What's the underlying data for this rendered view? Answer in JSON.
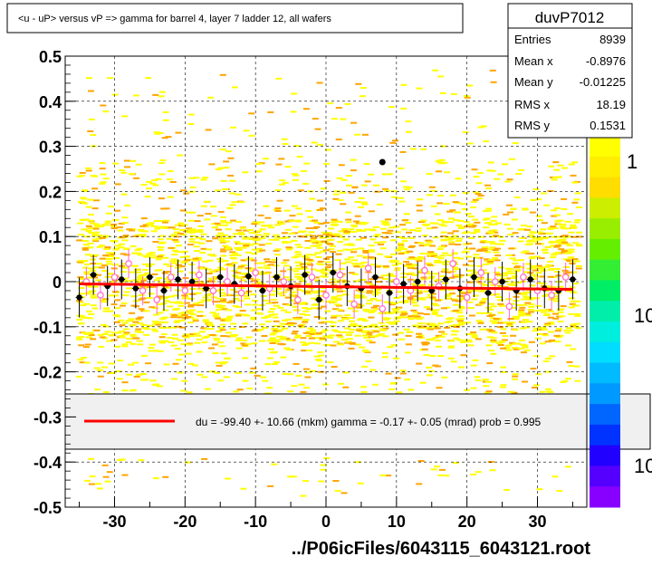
{
  "chart_data": {
    "type": "scatter",
    "title": "<u - uP>       versus   vP =>  gamma for barrel 4, layer 7 ladder 12, all wafers",
    "footer": "../P06icFiles/6043115_6043121.root",
    "xlim": [
      -37,
      37
    ],
    "ylim": [
      -0.5,
      0.5
    ],
    "xticks": [
      -30,
      -20,
      -10,
      0,
      10,
      20,
      30
    ],
    "xtick_labels": [
      "-30",
      "-20",
      "-10",
      "0",
      "10",
      "20",
      "30"
    ],
    "yticks": [
      -0.5,
      -0.4,
      -0.3,
      -0.2,
      -0.1,
      0,
      0.1,
      0.2,
      0.3,
      0.4,
      0.5
    ],
    "ytick_labels": [
      "-0.5",
      "-0.4",
      "-0.3",
      "-0.2",
      "-0.1",
      "0",
      "0.1",
      "0.2",
      "0.3",
      "0.4",
      "0.5"
    ],
    "grid": true,
    "stats": {
      "name": "duvP7012",
      "rows": [
        {
          "label": "Entries",
          "value": "8939"
        },
        {
          "label": "Mean x",
          "value": "-0.8976"
        },
        {
          "label": "Mean y",
          "value": "-0.01225"
        },
        {
          "label": "RMS x",
          "value": "18.19"
        },
        {
          "label": "RMS y",
          "value": "0.1531"
        }
      ]
    },
    "palette_labels": [
      "1",
      "10",
      "10"
    ],
    "legend_text": "du =  -99.40 +- 10.66 (mkm) gamma =   -0.17 +-  0.05 (mrad) prob = 0.995",
    "fit_line": {
      "x": [
        -35,
        35
      ],
      "y": [
        -0.005,
        -0.017
      ],
      "color": "#ff0000"
    },
    "outlier_point": {
      "x": 8,
      "y": 0.265
    },
    "profile_black": {
      "x": [
        -35,
        -33,
        -31,
        -29,
        -27,
        -25,
        -23,
        -21,
        -19,
        -17,
        -15,
        -13,
        -11,
        -9,
        -7,
        -5,
        -3,
        -1,
        1,
        3,
        5,
        7,
        9,
        11,
        13,
        15,
        17,
        19,
        21,
        23,
        25,
        27,
        29,
        31,
        33,
        35
      ],
      "y": [
        -0.035,
        0.015,
        -0.01,
        0.005,
        -0.015,
        0.01,
        -0.02,
        0.005,
        0.0,
        -0.015,
        0.01,
        -0.005,
        0.012,
        -0.02,
        0.01,
        -0.01,
        0.015,
        -0.04,
        0.02,
        -0.01,
        -0.015,
        0.01,
        -0.025,
        -0.005,
        0.0,
        -0.02,
        0.005,
        -0.015,
        0.01,
        -0.025,
        0.0,
        -0.02,
        0.005,
        -0.015,
        -0.02,
        0.005
      ]
    },
    "profile_pink": {
      "x": [
        -34,
        -32,
        -30,
        -28,
        -26,
        -24,
        -22,
        -20,
        -18,
        -16,
        -14,
        -12,
        -10,
        -8,
        -6,
        -4,
        -2,
        0,
        2,
        4,
        6,
        8,
        10,
        12,
        14,
        16,
        18,
        20,
        22,
        24,
        26,
        28,
        30,
        32,
        34
      ],
      "y": [
        0.0,
        -0.03,
        0.01,
        0.04,
        -0.02,
        -0.04,
        0.01,
        -0.02,
        0.015,
        -0.02,
        0.0,
        -0.025,
        0.02,
        -0.015,
        0.0,
        -0.04,
        0.01,
        -0.03,
        0.015,
        -0.05,
        0.03,
        -0.06,
        0.0,
        -0.02,
        0.025,
        -0.01,
        0.04,
        -0.035,
        0.02,
        0.0,
        -0.055,
        0.01,
        -0.02,
        -0.03,
        0.01
      ]
    },
    "colors": {
      "red": "#ff0000",
      "yellow": "#ffff00",
      "orange": "#ffa500",
      "pink": "#ff66cc",
      "black": "#000000"
    }
  }
}
